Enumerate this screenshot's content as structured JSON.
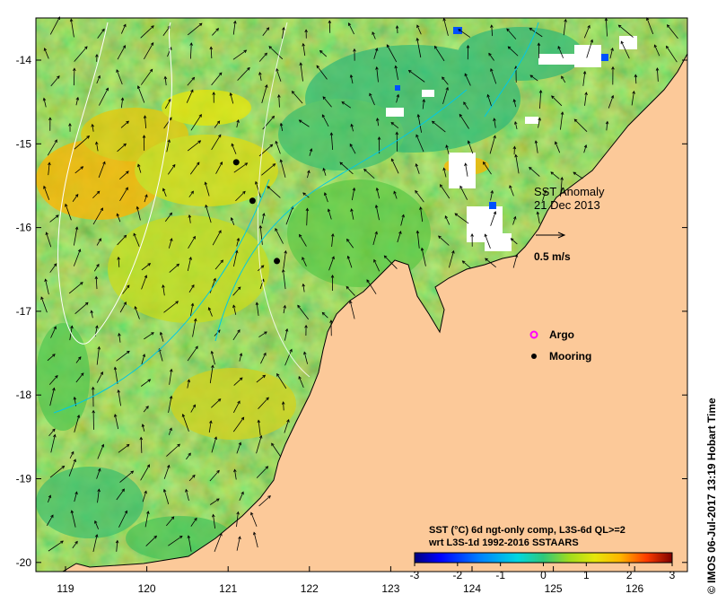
{
  "map": {
    "title_line1": "SST Anomaly",
    "title_line2": "21 Dec 2013",
    "velocity_scale_label": "0.5 m/s",
    "legend": {
      "argo_label": "Argo",
      "mooring_label": "Mooring",
      "argo_color": "#ff00ff",
      "mooring_color": "#000000"
    },
    "colorbar": {
      "title_line1": "SST (°C) 6d ngt-only comp, L3S-6d QL>=2",
      "title_line2": "wrt L3S-1d 1992-2016 SSTAARS",
      "ticks": [
        "-3",
        "-2",
        "-1",
        "0",
        "1",
        "2",
        "3"
      ],
      "colors": [
        "#00007f",
        "#0000ff",
        "#007fff",
        "#00d7e0",
        "#2fc87a",
        "#64c832",
        "#a0dc1e",
        "#e6e60a",
        "#ffb400",
        "#ff5a00",
        "#c80000",
        "#7f0000"
      ]
    },
    "x_ticks": [
      "119",
      "120",
      "121",
      "122",
      "123",
      "124",
      "125",
      "126"
    ],
    "y_ticks": [
      "-14",
      "-15",
      "-16",
      "-17",
      "-18",
      "-19",
      "-20"
    ],
    "credit": "© IMOS 06-Jul-2017 13:19 Hobart Time",
    "colors": {
      "land": "#fcc999",
      "ocean_base": "#8cd23c",
      "cloud": "#ffffff"
    },
    "moorings": [
      {
        "lon": 121.1,
        "lat": -15.22
      },
      {
        "lon": 121.3,
        "lat": -15.68
      },
      {
        "lon": 121.6,
        "lat": -16.4
      }
    ]
  }
}
